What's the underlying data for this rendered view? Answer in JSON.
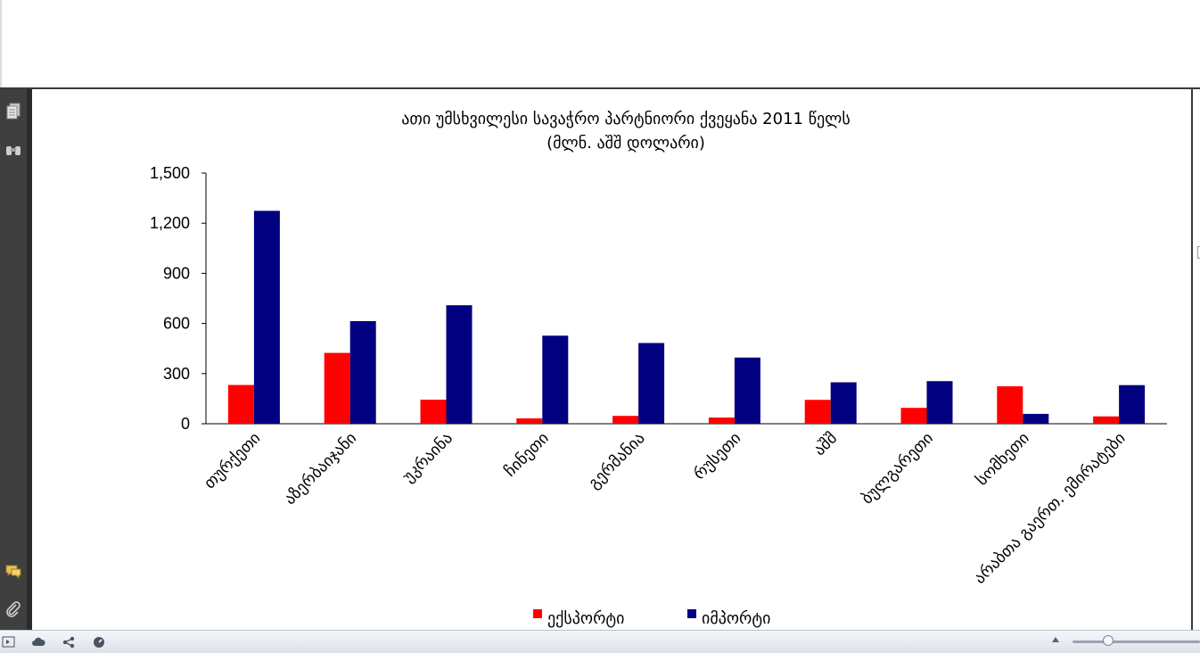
{
  "colors": {
    "export": "#ff0000",
    "import": "#000080"
  },
  "icons": {
    "rail": [
      "pages-icon",
      "binoculars-icon",
      "comment-icon",
      "paperclip-icon"
    ],
    "status": [
      "panel-icon",
      "cloud-icon",
      "share-icon",
      "gauge-icon"
    ]
  },
  "chart_data": {
    "type": "bar",
    "title": "ათი უმსხვილესი სავაჭრო პარტნიორი ქვეყანა 2011 წელს",
    "subtitle": "(მლნ. აშშ დოლარი)",
    "categories": [
      "თურქეთი",
      "აზერბაიჯანი",
      "უკრაინა",
      "ჩინეთი",
      "გერმანია",
      "რუსეთი",
      "აშშ",
      "ბულგარეთი",
      "სომხეთი",
      "არაბთა გაერთ. ემირატები"
    ],
    "series": [
      {
        "name": "ექსპორტი",
        "values": [
          232,
          424,
          144,
          32,
          47,
          37,
          143,
          95,
          224,
          44
        ]
      },
      {
        "name": "იმპორტი",
        "values": [
          1274,
          614,
          709,
          527,
          483,
          396,
          248,
          255,
          59,
          231
        ]
      }
    ],
    "ylim": [
      0,
      1500
    ],
    "yticks": [
      "0",
      "300",
      "600",
      "900",
      "1,200",
      "1,500"
    ],
    "ytick_values": [
      0,
      300,
      600,
      900,
      1200,
      1500
    ],
    "grid": false,
    "legend": "bottom"
  }
}
